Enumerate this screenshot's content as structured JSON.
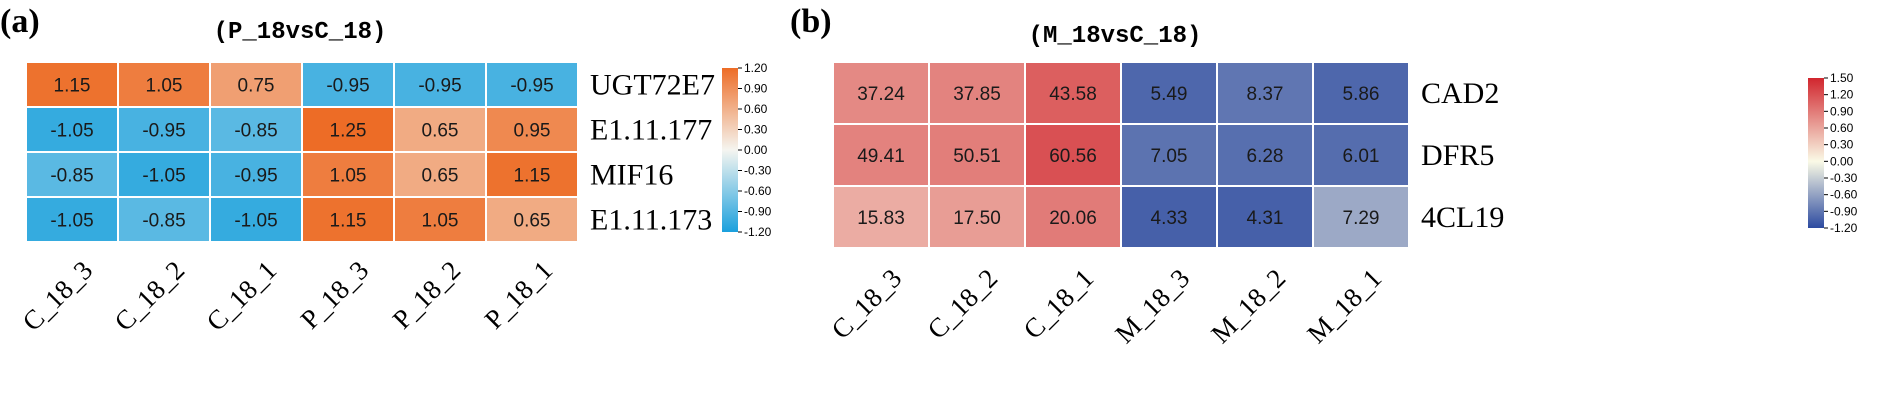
{
  "colors": {
    "a_low": "#1aa0dd",
    "a_mid": "#f5f5f0",
    "a_high": "#ed6c26",
    "b_low": "#2c4aa0",
    "b_mid": "#fafae6",
    "b_high": "#d1262e"
  },
  "chart_data": [
    {
      "type": "heatmap",
      "panel_label": "(a)",
      "title": "(P_18vsC_18)",
      "columns": [
        "C_18_3",
        "C_18_2",
        "C_18_1",
        "P_18_3",
        "P_18_2",
        "P_18_1"
      ],
      "rows": [
        "UGT72E7",
        "E1.11.177",
        "MIF16",
        "E1.11.173"
      ],
      "values": [
        [
          1.15,
          1.05,
          0.75,
          -0.95,
          -0.95,
          -0.95
        ],
        [
          -1.05,
          -0.95,
          -0.85,
          1.25,
          0.65,
          0.95
        ],
        [
          -0.85,
          -1.05,
          -0.95,
          1.05,
          0.65,
          1.15
        ],
        [
          -1.05,
          -0.85,
          -1.05,
          1.15,
          1.05,
          0.65
        ]
      ],
      "value_labels": [
        [
          "1.15",
          "1.05",
          "0.75",
          "-0.95",
          "-0.95",
          "-0.95"
        ],
        [
          "-1.05",
          "-0.95",
          "-0.85",
          "1.25",
          "0.65",
          "0.95"
        ],
        [
          "-0.85",
          "-1.05",
          "-0.95",
          "1.05",
          "0.65",
          "1.15"
        ],
        [
          "-1.05",
          "-0.85",
          "-1.05",
          "1.15",
          "1.05",
          "0.65"
        ]
      ],
      "color_range": [
        -1.2,
        1.2
      ],
      "colorbar_ticks": [
        "1.20",
        "0.90",
        "0.60",
        "0.30",
        "0.00",
        "-0.30",
        "-0.60",
        "-0.90",
        "-1.20"
      ]
    },
    {
      "type": "heatmap",
      "panel_label": "(b)",
      "title": "(M_18vsC_18)",
      "columns": [
        "C_18_3",
        "C_18_2",
        "C_18_1",
        "M_18_3",
        "M_18_2",
        "M_18_1"
      ],
      "rows": [
        "CAD2",
        "DFR5",
        "4CL19"
      ],
      "values": [
        [
          37.24,
          37.85,
          43.58,
          5.49,
          8.37,
          5.86
        ],
        [
          49.41,
          50.51,
          60.56,
          7.05,
          6.28,
          6.01
        ],
        [
          15.83,
          17.5,
          20.06,
          4.33,
          4.31,
          7.29
        ]
      ],
      "value_labels": [
        [
          "37.24",
          "37.85",
          "43.58",
          "5.49",
          "8.37",
          "5.86"
        ],
        [
          "49.41",
          "50.51",
          "60.56",
          "7.05",
          "6.28",
          "6.01"
        ],
        [
          "15.83",
          "17.50",
          "20.06",
          "4.33",
          "4.31",
          "7.29"
        ]
      ],
      "color_scale_values": [
        [
          0.8,
          0.84,
          1.1,
          -1.0,
          -0.9,
          -1.0
        ],
        [
          0.85,
          0.88,
          1.2,
          -0.92,
          -0.95,
          -0.96
        ],
        [
          0.55,
          0.66,
          0.9,
          -1.05,
          -1.05,
          -0.55
        ]
      ],
      "color_range": [
        -1.2,
        1.5
      ],
      "colorbar_ticks": [
        "1.50",
        "1.20",
        "0.90",
        "0.60",
        "0.30",
        "0.00",
        "-0.30",
        "-0.60",
        "-0.90",
        "-1.20"
      ]
    }
  ]
}
